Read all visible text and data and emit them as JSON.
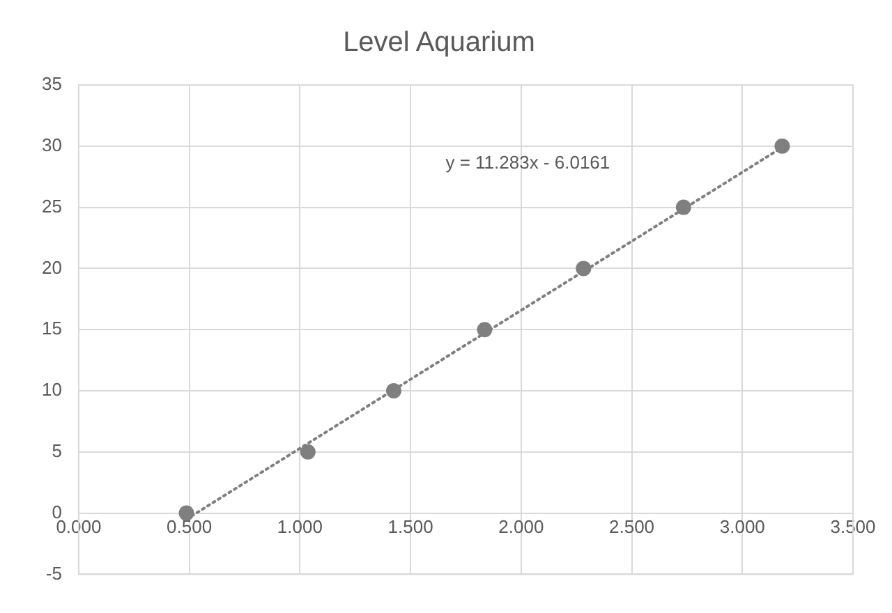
{
  "chart_data": {
    "type": "scatter",
    "title": "Level Aquarium",
    "series": [
      {
        "type": "scatter",
        "color": "#7f7f7f",
        "x": [
          0.487,
          1.036,
          1.424,
          1.835,
          2.282,
          2.734,
          3.18
        ],
        "values": [
          0,
          5,
          10,
          15,
          20,
          25,
          30
        ],
        "marker": "circle"
      },
      {
        "type": "line",
        "color": "#7f7f7f",
        "x": [
          0.487,
          3.18
        ],
        "values": [
          -0.5,
          29.9
        ],
        "marker": "none",
        "line_style": "dotted"
      }
    ],
    "xlim": [
      0,
      3.5
    ],
    "xticks": [
      {
        "value": 0,
        "label": "0.000"
      },
      {
        "value": 0.5,
        "label": "0.500"
      },
      {
        "value": 1,
        "label": "1.000"
      },
      {
        "value": 1.5,
        "label": "1.500"
      },
      {
        "value": 2,
        "label": "2.000"
      },
      {
        "value": 2.5,
        "label": "2.500"
      },
      {
        "value": 3,
        "label": "3.000"
      },
      {
        "value": 3.5,
        "label": "3.500"
      }
    ],
    "ylim": [
      -5,
      35
    ],
    "yticks": [
      -5,
      0,
      5,
      10,
      15,
      20,
      25,
      30,
      35
    ],
    "grid": true,
    "legend": false,
    "annotations": [
      "y = 11.283x - 6.0161"
    ]
  }
}
